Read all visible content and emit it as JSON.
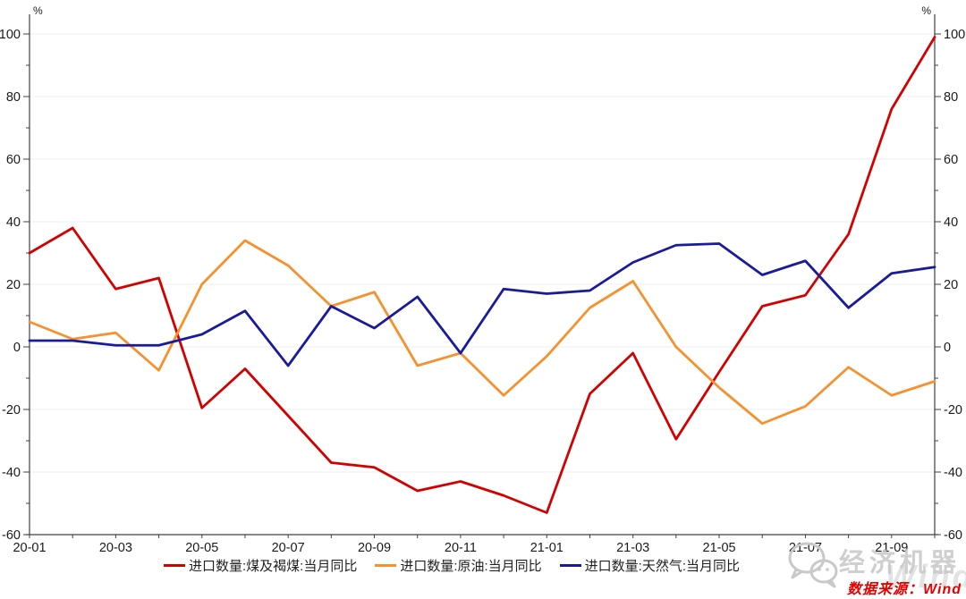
{
  "chart_data": {
    "type": "line",
    "title": "",
    "xlabel": "",
    "ylabel": "",
    "y_unit": "%",
    "ylim": [
      -60,
      100
    ],
    "y_major_step": 20,
    "y_minor_step": 10,
    "grid": "horizontal-light",
    "legend_position": "bottom",
    "axis_color": "#404040",
    "grid_color": "#efefef",
    "x": [
      "20-01",
      "20-02",
      "20-03",
      "20-04",
      "20-05",
      "20-06",
      "20-07",
      "20-08",
      "20-09",
      "20-10",
      "20-11",
      "20-12",
      "21-01",
      "21-02",
      "21-03",
      "21-04",
      "21-05",
      "21-06",
      "21-07",
      "21-08",
      "21-09",
      "21-10"
    ],
    "x_tick_labels": [
      "20-01",
      "20-03",
      "20-05",
      "20-07",
      "20-09",
      "20-11",
      "21-01",
      "21-03",
      "21-05",
      "21-07",
      "21-09"
    ],
    "series": [
      {
        "name": "进口数量:煤及褐煤:当月同比",
        "color": "#d40000",
        "values": [
          30,
          38,
          18.5,
          22,
          -19.5,
          -7,
          -22,
          -37,
          -38.5,
          -46,
          -43,
          -47.5,
          -53,
          -15,
          -2,
          -29.5,
          -8,
          13,
          16.5,
          36,
          76,
          99
        ]
      },
      {
        "name": "进口数量:原油:当月同比",
        "color": "#f6912e",
        "values": [
          8,
          2.5,
          4.5,
          -7.5,
          20,
          34,
          26,
          13,
          17.5,
          -6,
          -2,
          -15.5,
          -3,
          12.5,
          21,
          0,
          -13,
          -24.5,
          -19,
          -6.5,
          -15.5,
          -11
        ]
      },
      {
        "name": "进口数量:天然气:当月同比",
        "color": "#1a1a9c",
        "values": [
          2,
          2,
          0.5,
          0.5,
          4,
          11.5,
          -6,
          13,
          6,
          16,
          -2,
          18.5,
          17,
          18,
          27,
          32.5,
          33,
          23,
          27.5,
          12.5,
          23.5,
          25.5
        ]
      }
    ]
  },
  "watermark": {
    "brand": "经济机器",
    "ghost": "Wind",
    "source": "数据来源：Wind",
    "source_color": "#e60000"
  }
}
